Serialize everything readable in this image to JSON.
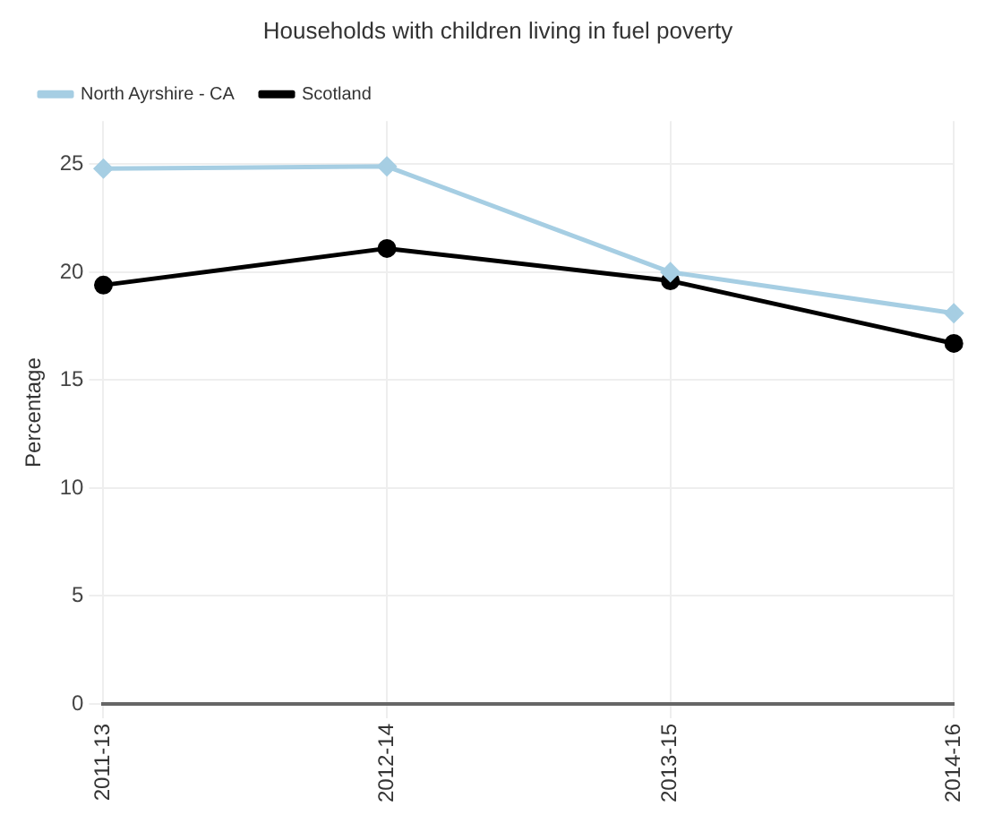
{
  "chart_data": {
    "type": "line",
    "title": "Households with children living in fuel poverty",
    "ylabel": "Percentage",
    "categories": [
      "2011-13",
      "2012-14",
      "2013-15",
      "2014-16"
    ],
    "series": [
      {
        "name": "North Ayrshire - CA",
        "color": "#a6cee3",
        "marker": "diamond",
        "values": [
          24.8,
          24.9,
          20.0,
          18.1
        ]
      },
      {
        "name": "Scotland",
        "color": "#000000",
        "marker": "circle",
        "values": [
          19.4,
          21.1,
          19.6,
          16.7
        ]
      }
    ],
    "ylim": [
      0,
      27
    ],
    "yticks": [
      0,
      5,
      10,
      15,
      20,
      25
    ],
    "grid": true,
    "legend": "top left"
  }
}
